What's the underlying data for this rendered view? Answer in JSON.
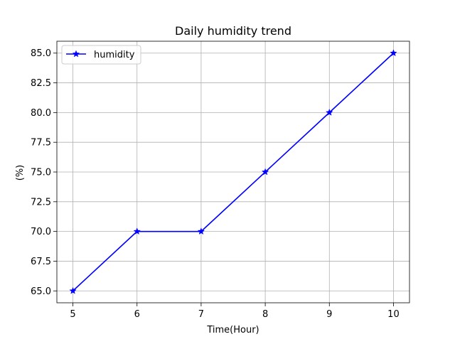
{
  "chart_data": {
    "type": "line",
    "title": "Daily humidity trend",
    "xlabel": "Time(Hour)",
    "ylabel": "(%)",
    "x": [
      5,
      6,
      7,
      8,
      9,
      10
    ],
    "xticks": [
      "5",
      "6",
      "7",
      "8",
      "9",
      "10"
    ],
    "yticks": [
      "65.0",
      "67.5",
      "70.0",
      "72.5",
      "75.0",
      "77.5",
      "80.0",
      "82.5",
      "85.0"
    ],
    "xlim": [
      4.75,
      10.25
    ],
    "ylim": [
      64.0,
      86.0
    ],
    "grid": true,
    "legend_position": "top-left",
    "series": [
      {
        "name": "humidity",
        "values": [
          65,
          70,
          70,
          75,
          80,
          85
        ],
        "color": "#0000ff",
        "marker": "star"
      }
    ]
  }
}
